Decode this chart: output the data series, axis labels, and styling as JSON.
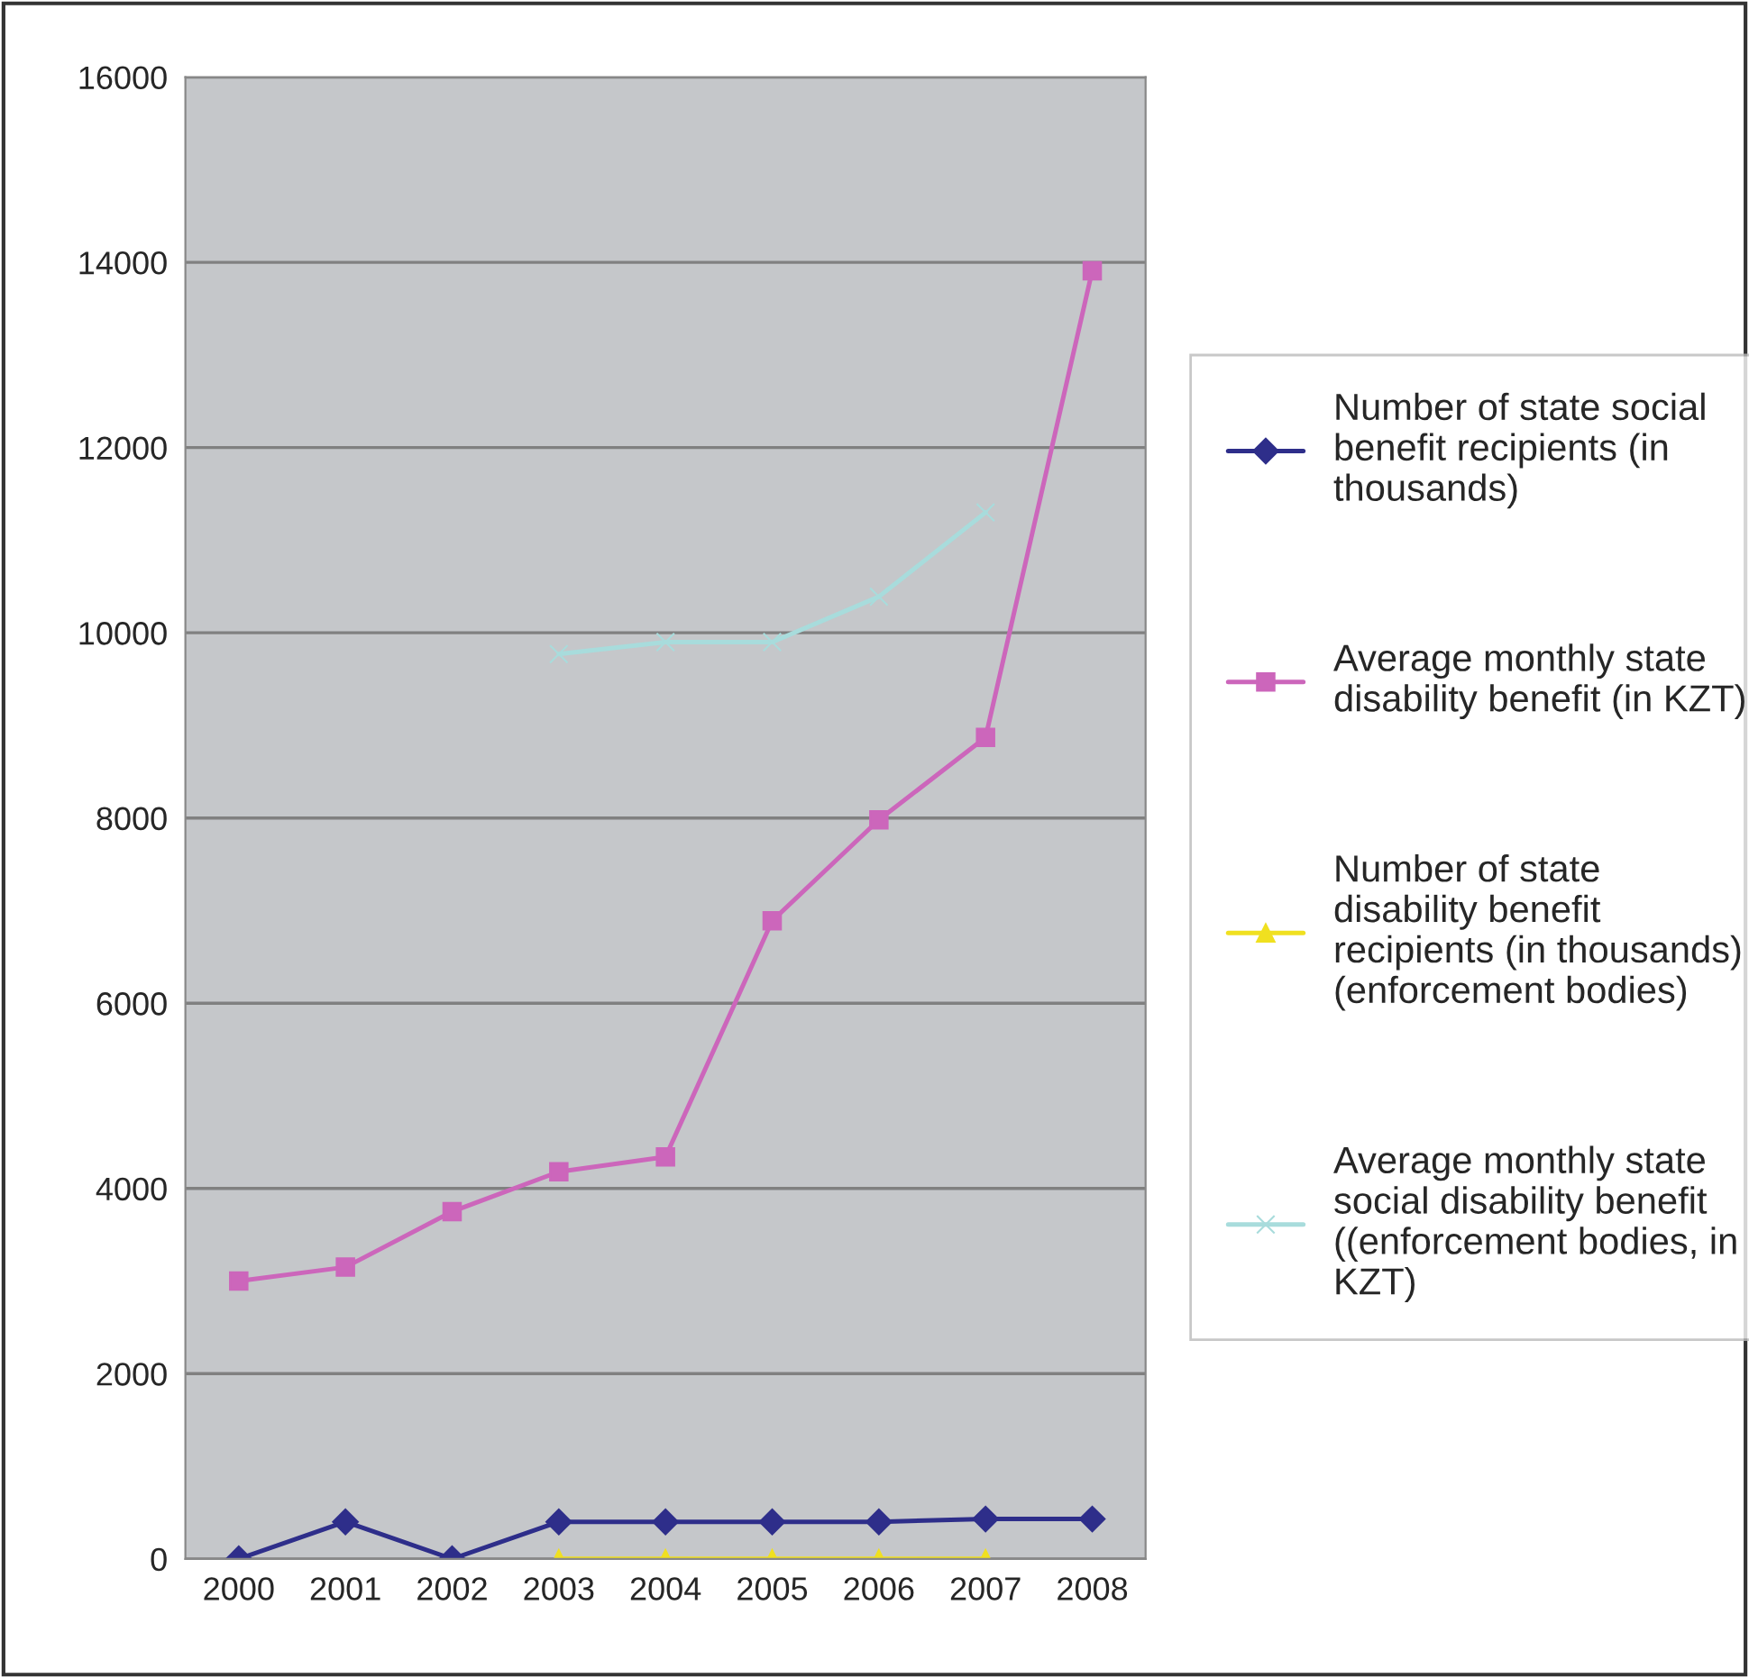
{
  "chart_data": {
    "type": "line",
    "categories": [
      "2000",
      "2001",
      "2002",
      "2003",
      "2004",
      "2005",
      "2006",
      "2007",
      "2008"
    ],
    "series": [
      {
        "name": "Number of state social\nbenefit recipients (in\nthousands)",
        "color": "#2e2e8a",
        "marker": "diamond",
        "values": [
          0,
          400,
          0,
          400,
          400,
          400,
          400,
          430,
          430
        ]
      },
      {
        "name": "Average monthly state\ndisability benefit (in KZT)",
        "color": "#cc66bb",
        "marker": "square",
        "values": [
          3000,
          3150,
          3750,
          4180,
          4340,
          6890,
          7980,
          8870,
          13910
        ]
      },
      {
        "name": "Number of state\ndisability benefit\nrecipients (in thousands)\n(enforcement bodies)",
        "color": "#f0e020",
        "marker": "triangle",
        "values": [
          null,
          null,
          null,
          0,
          0,
          0,
          0,
          0,
          null
        ]
      },
      {
        "name": "Average monthly state\nsocial disability benefit\n((enforcement bodies, in\nKZT)",
        "color": "#a8dcdc",
        "marker": "cross",
        "values": [
          null,
          null,
          null,
          9770,
          9900,
          9900,
          10390,
          11300,
          null
        ]
      }
    ],
    "ylim": [
      0,
      16000
    ],
    "yticks": [
      0,
      2000,
      4000,
      6000,
      8000,
      10000,
      12000,
      14000,
      16000
    ],
    "grid": "y",
    "legend": "right"
  }
}
